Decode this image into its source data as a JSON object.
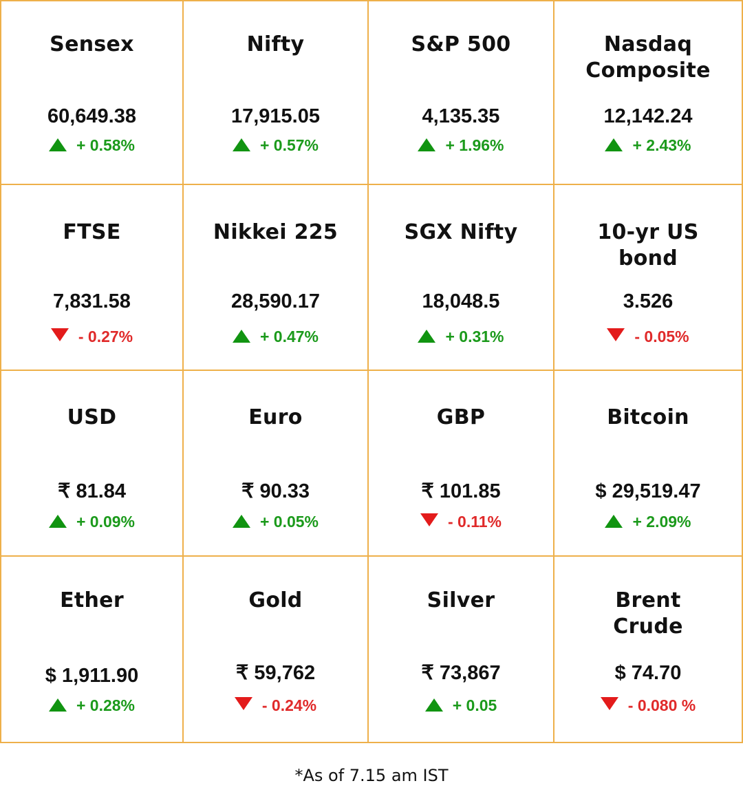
{
  "colors": {
    "grid_border": "#eeb04a",
    "up": "#1b9a1b",
    "down": "#e02a2a"
  },
  "tiles": [
    {
      "name": "Sensex",
      "value": "60,649.38",
      "direction": "up",
      "change": "+ 0.58%",
      "arrow_icon": "triangle-up-icon"
    },
    {
      "name": "Nifty",
      "value": "17,915.05",
      "direction": "up",
      "change": "+ 0.57%",
      "arrow_icon": "triangle-up-icon"
    },
    {
      "name": "S&P 500",
      "value": "4,135.35",
      "direction": "up",
      "change": "+ 1.96%",
      "arrow_icon": "triangle-up-icon"
    },
    {
      "name": "Nasdaq Composite",
      "value": "12,142.24",
      "direction": "up",
      "change": "+ 2.43%",
      "arrow_icon": "triangle-up-icon"
    },
    {
      "name": "FTSE",
      "value": "7,831.58",
      "direction": "down",
      "change": "- 0.27%",
      "arrow_icon": "triangle-down-icon"
    },
    {
      "name": "Nikkei 225",
      "value": "28,590.17",
      "direction": "up",
      "change": "+ 0.47%",
      "arrow_icon": "triangle-up-icon"
    },
    {
      "name": "SGX Nifty",
      "value": "18,048.5",
      "direction": "up",
      "change": "+ 0.31%",
      "arrow_icon": "triangle-up-icon"
    },
    {
      "name": "10-yr US bond",
      "value": "3.526",
      "direction": "down",
      "change": "- 0.05%",
      "arrow_icon": "triangle-down-icon"
    },
    {
      "name": "USD",
      "value": "₹ 81.84",
      "direction": "up",
      "change": "+ 0.09%",
      "arrow_icon": "triangle-up-icon"
    },
    {
      "name": "Euro",
      "value": "₹ 90.33",
      "direction": "up",
      "change": "+ 0.05%",
      "arrow_icon": "triangle-up-icon"
    },
    {
      "name": "GBP",
      "value": "₹ 101.85",
      "direction": "down",
      "change": "- 0.11%",
      "arrow_icon": "triangle-down-icon"
    },
    {
      "name": "Bitcoin",
      "value": "$ 29,519.47",
      "direction": "up",
      "change": "+ 2.09%",
      "arrow_icon": "triangle-up-icon"
    },
    {
      "name": "Ether",
      "value": "$ 1,911.90",
      "direction": "up",
      "change": "+ 0.28%",
      "arrow_icon": "triangle-up-icon"
    },
    {
      "name": "Gold",
      "value": "₹ 59,762",
      "direction": "down",
      "change": "- 0.24%",
      "arrow_icon": "triangle-down-icon"
    },
    {
      "name": "Silver",
      "value": "₹ 73,867",
      "direction": "up",
      "change": "+ 0.05",
      "arrow_icon": "triangle-up-icon"
    },
    {
      "name": "Brent Crude",
      "value": "$ 74.70",
      "direction": "down",
      "change": "- 0.080 %",
      "arrow_icon": "triangle-down-icon"
    }
  ],
  "footnote": "*As of 7.15 am IST"
}
